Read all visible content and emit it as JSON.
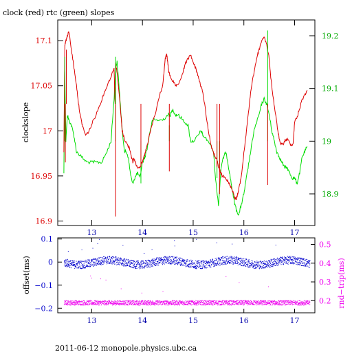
{
  "title": "clock (red) rtc (green) slopes",
  "footer": "2011-06-12  monopole.physics.ubc.ca",
  "colors": {
    "axes": "#000000",
    "clock": "#dd0000",
    "rtc": "#00dd00",
    "offset": "#0000cc",
    "rndtrip": "#ee00ee"
  },
  "chart_data": [
    {
      "type": "line",
      "panel": "top",
      "xlabel": "",
      "ylabel": "clockslope",
      "y2label": "",
      "xlim": [
        12.33,
        17.4
      ],
      "ylim": [
        16.895,
        17.123
      ],
      "y2lim": [
        18.84,
        19.23
      ],
      "xticks": [
        13,
        14,
        15,
        16,
        17
      ],
      "yticks": [
        16.9,
        16.95,
        17,
        17.05,
        17.1
      ],
      "ytick_labels": [
        "16.9",
        "16.95",
        "17",
        "17.05",
        "17.1"
      ],
      "y2ticks": [
        18.9,
        19,
        19.1,
        19.2
      ],
      "y2tick_labels": [
        "18.9",
        "19",
        "19.1",
        "19.2"
      ],
      "series": [
        {
          "axis": "left",
          "x": [
            12.45,
            12.47,
            12.49,
            12.52,
            12.55,
            12.6,
            12.65,
            12.7,
            12.74,
            12.78,
            12.82,
            12.88,
            12.95,
            13.02,
            13.1,
            13.2,
            13.3,
            13.38,
            13.44,
            13.46,
            13.47,
            13.5,
            13.55,
            13.6,
            13.65,
            13.7,
            13.75,
            13.79,
            13.81,
            13.83,
            13.86,
            13.9,
            13.95,
            14.0,
            14.05,
            14.1,
            14.18,
            14.26,
            14.34,
            14.4,
            14.45,
            14.48,
            14.5,
            14.52,
            14.55,
            14.6,
            14.65,
            14.7,
            14.8,
            14.85,
            14.9,
            14.95,
            15.0,
            15.05,
            15.1,
            15.15,
            15.2,
            15.25,
            15.3,
            15.35,
            15.4,
            15.45,
            15.48,
            15.5,
            15.53,
            15.57,
            15.62,
            15.67,
            15.72,
            15.77,
            15.8,
            15.82,
            15.85,
            15.88,
            15.9,
            15.95,
            16.0,
            16.05,
            16.1,
            16.15,
            16.2,
            16.25,
            16.3,
            16.35,
            16.4,
            16.45,
            16.5,
            16.53,
            16.57,
            16.62,
            16.67,
            16.72,
            16.77,
            16.82,
            16.87,
            16.92,
            16.97,
            17.0,
            17.05,
            17.1,
            17.15,
            17.2,
            17.25
          ],
          "y": [
            16.975,
            17.095,
            17.1,
            17.105,
            17.11,
            17.09,
            17.07,
            17.05,
            17.03,
            17.015,
            17.005,
            16.995,
            17.0,
            17.01,
            17.02,
            17.035,
            17.05,
            17.06,
            17.07,
            17.03,
            17.075,
            17.065,
            17.035,
            17.0,
            16.99,
            16.985,
            16.98,
            16.97,
            16.965,
            16.97,
            16.965,
            16.96,
            16.96,
            16.965,
            16.975,
            16.985,
            17.005,
            17.02,
            17.04,
            17.05,
            17.08,
            17.085,
            17.075,
            17.065,
            17.06,
            17.055,
            17.05,
            17.05,
            17.065,
            17.075,
            17.08,
            17.085,
            17.075,
            17.07,
            17.06,
            17.05,
            17.04,
            17.02,
            17.0,
            16.985,
            16.975,
            16.97,
            16.965,
            16.96,
            16.955,
            16.95,
            16.95,
            16.945,
            16.94,
            16.935,
            16.93,
            16.925,
            16.925,
            16.93,
            16.935,
            16.95,
            16.975,
            17.0,
            17.025,
            17.05,
            17.065,
            17.08,
            17.09,
            17.1,
            17.105,
            17.095,
            17.08,
            17.06,
            17.04,
            17.02,
            17.0,
            16.985,
            16.985,
            16.99,
            16.99,
            16.985,
            16.985,
            17.01,
            17.015,
            17.025,
            17.035,
            17.04,
            17.045
          ],
          "spikes_x": [
            12.48,
            12.5,
            13.47,
            13.97,
            14.53,
            15.47,
            15.52,
            16.47
          ],
          "spikes_y": [
            16.965,
            17.09,
            16.905,
            16.96,
            16.955,
            16.96,
            16.93,
            16.94
          ]
        },
        {
          "axis": "right",
          "x": [
            12.45,
            12.47,
            12.49,
            12.52,
            12.55,
            12.6,
            12.65,
            12.7,
            12.8,
            12.9,
            13.0,
            13.1,
            13.2,
            13.3,
            13.38,
            13.44,
            13.47,
            13.5,
            13.55,
            13.6,
            13.65,
            13.68,
            13.72,
            13.76,
            13.8,
            13.85,
            13.9,
            13.95,
            14.0,
            14.05,
            14.1,
            14.15,
            14.2,
            14.3,
            14.4,
            14.5,
            14.55,
            14.6,
            14.65,
            14.7,
            14.8,
            14.9,
            14.95,
            15.0,
            15.1,
            15.15,
            15.2,
            15.3,
            15.4,
            15.45,
            15.5,
            15.55,
            15.6,
            15.65,
            15.7,
            15.75,
            15.8,
            15.85,
            15.9,
            15.95,
            16.0,
            16.05,
            16.1,
            16.15,
            16.2,
            16.3,
            16.35,
            16.4,
            16.45,
            16.5,
            16.55,
            16.6,
            16.65,
            16.7,
            16.75,
            16.8,
            16.85,
            16.9,
            16.95,
            17.0,
            17.05,
            17.1,
            17.15,
            17.2,
            17.25
          ],
          "y": [
            18.94,
            19.13,
            19.0,
            19.05,
            19.04,
            19.03,
            19.01,
            18.98,
            18.97,
            18.96,
            18.96,
            18.96,
            18.96,
            18.98,
            19.0,
            19.08,
            19.14,
            19.15,
            19.09,
            19.02,
            18.98,
            18.98,
            18.97,
            18.94,
            18.92,
            18.93,
            18.94,
            18.93,
            18.96,
            18.97,
            18.99,
            19.02,
            19.04,
            19.04,
            19.04,
            19.05,
            19.05,
            19.06,
            19.05,
            19.05,
            19.04,
            19.03,
            19.0,
            19.0,
            19.01,
            19.02,
            19.01,
            19.0,
            18.98,
            18.92,
            18.88,
            18.95,
            18.97,
            18.98,
            18.95,
            18.92,
            18.89,
            18.87,
            18.86,
            18.88,
            18.9,
            18.93,
            18.96,
            18.99,
            19.02,
            19.05,
            19.07,
            19.08,
            19.07,
            19.05,
            19.02,
            19.0,
            18.98,
            18.97,
            18.96,
            18.95,
            18.95,
            18.94,
            18.93,
            18.93,
            18.92,
            18.94,
            18.97,
            18.98,
            18.99
          ],
          "spikes_x": [
            12.47,
            13.47,
            13.97,
            14.53,
            15.47,
            15.52,
            16.47
          ],
          "spikes_y": [
            19.16,
            19.16,
            18.92,
            19.03,
            18.93,
            18.95,
            19.21
          ]
        }
      ]
    },
    {
      "type": "scatter",
      "panel": "bottom",
      "xlabel": "",
      "ylabel": "offset(ms)",
      "y2label": "rnd−trip(ms)",
      "xlim": [
        12.33,
        17.4
      ],
      "ylim": [
        -0.22,
        0.105
      ],
      "y2lim": [
        0.135,
        0.535
      ],
      "xticks": [
        13,
        14,
        15,
        16,
        17
      ],
      "yticks": [
        -0.2,
        -0.1,
        0,
        0.1
      ],
      "ytick_labels": [
        "−0.2",
        "−0.1",
        "0",
        "0.1"
      ],
      "y2ticks": [
        0.2,
        0.3,
        0.4,
        0.5
      ],
      "y2tick_labels": [
        "0.2",
        "0.3",
        "0.4",
        "0.5"
      ],
      "series": [
        {
          "axis": "left",
          "x_range": [
            12.45,
            17.3
          ],
          "y_center": 0.0,
          "y_spread": 0.035
        },
        {
          "axis": "right",
          "x_range": [
            12.45,
            17.3
          ],
          "y_center": 0.19,
          "y_spread": 0.025
        }
      ]
    }
  ]
}
